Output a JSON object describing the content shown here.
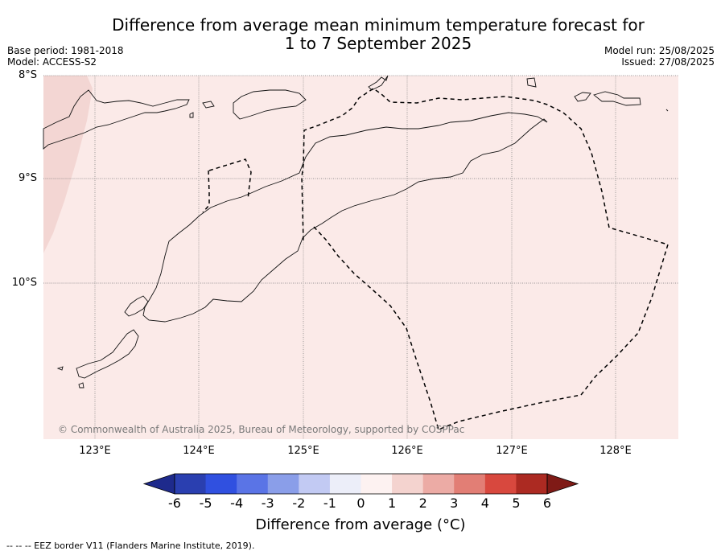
{
  "header": {
    "title_line1": "Difference from average mean minimum temperature forecast for",
    "title_line2": "1 to 7 September 2025",
    "base_period": "Base period: 1981-2018",
    "model": "Model: ACCESS-S2",
    "model_run": "Model run: 25/08/2025",
    "issued": "Issued: 27/08/2025"
  },
  "map": {
    "latitude_labels": [
      "8°S",
      "9°S",
      "10°S"
    ],
    "longitude_labels": [
      "123°E",
      "124°E",
      "125°E",
      "126°E",
      "127°E",
      "128°E"
    ],
    "background_color": "#fbeae8",
    "cooler_region_color": "#f3d6d3",
    "copyright": "© Commonwealth of Australia 2025, Bureau of Meteorology, supported by COSPPac"
  },
  "colorbar": {
    "ticks": [
      "-6",
      "-5",
      "-4",
      "-3",
      "-2",
      "-1",
      "0",
      "1",
      "2",
      "3",
      "4",
      "5",
      "6"
    ],
    "colors": [
      "#1e2a8c",
      "#2a3fb0",
      "#3050e0",
      "#5a74e6",
      "#8a9ee9",
      "#c2caf3",
      "#eceef9",
      "#fdf2f1",
      "#f4d3cf",
      "#ecaba5",
      "#e27e75",
      "#d8483e",
      "#ac2a22",
      "#7f1a16"
    ],
    "label": "Difference from average (°C)"
  },
  "footer": {
    "legend": "--  --  -- EEZ border V11 (Flanders Marine Institute, 2019)."
  }
}
